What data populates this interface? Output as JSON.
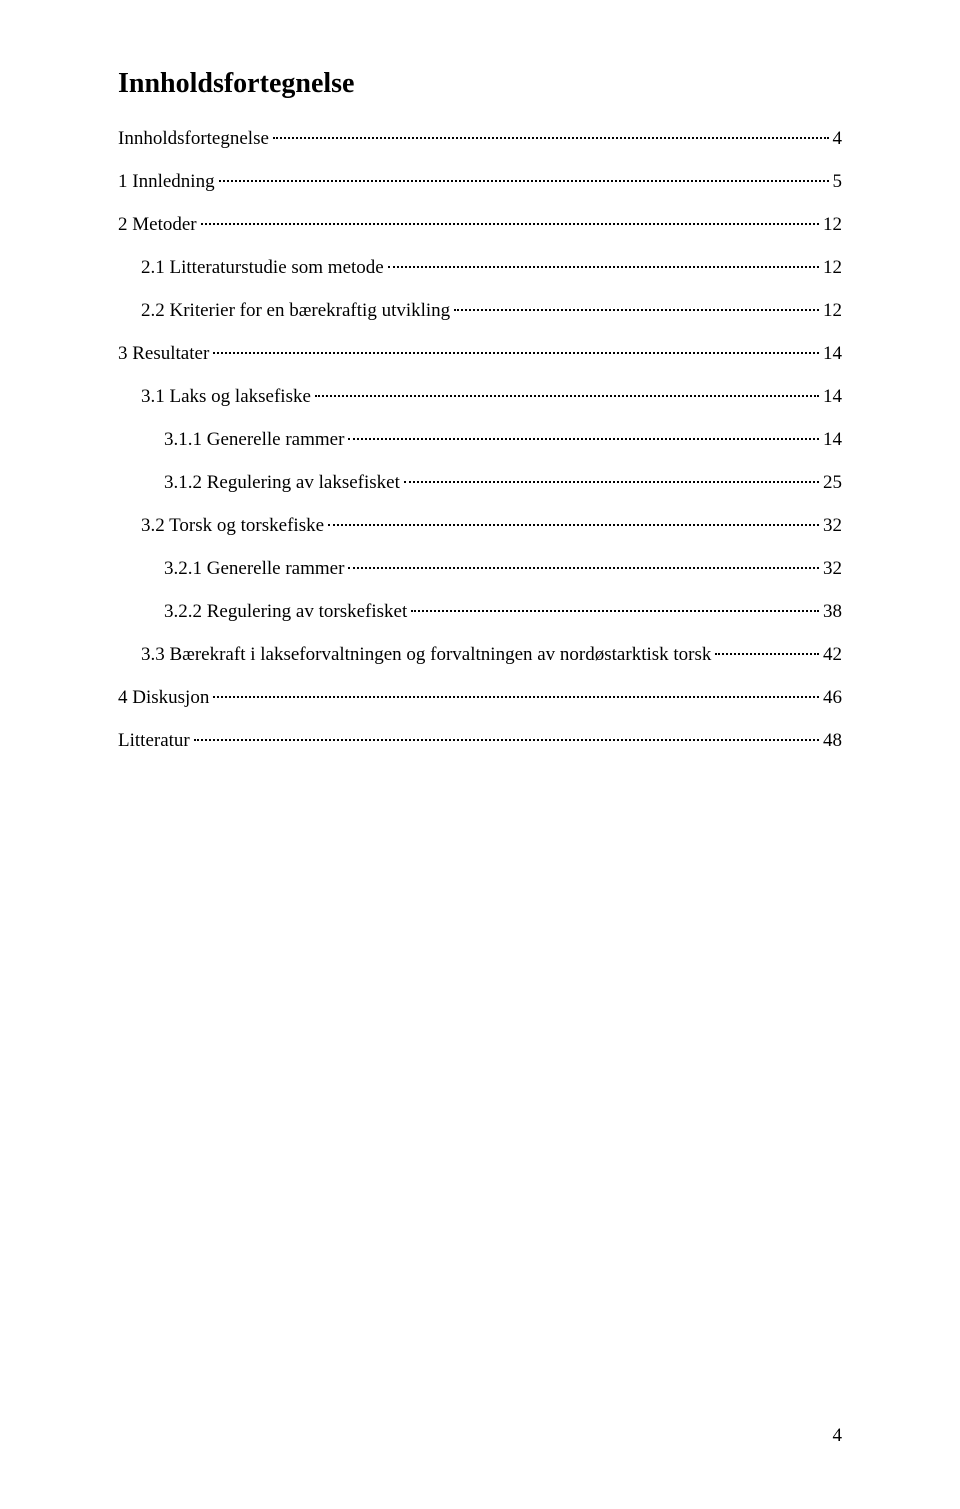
{
  "title": "Innholdsfortegnelse",
  "entries": [
    {
      "label": "Innholdsfortegnelse",
      "page": "4",
      "indent": 0
    },
    {
      "label": "1 Innledning",
      "page": "5",
      "indent": 0
    },
    {
      "label": "2 Metoder",
      "page": "12",
      "indent": 0
    },
    {
      "label": "2.1 Litteraturstudie som metode",
      "page": "12",
      "indent": 1
    },
    {
      "label": "2.2 Kriterier for en bærekraftig utvikling",
      "page": "12",
      "indent": 1
    },
    {
      "label": "3 Resultater",
      "page": "14",
      "indent": 0
    },
    {
      "label": "3.1 Laks og laksefiske",
      "page": "14",
      "indent": 1
    },
    {
      "label": "3.1.1 Generelle rammer",
      "page": "14",
      "indent": 2
    },
    {
      "label": "3.1.2 Regulering av laksefisket",
      "page": "25",
      "indent": 2
    },
    {
      "label": "3.2 Torsk og torskefiske",
      "page": "32",
      "indent": 1
    },
    {
      "label": "3.2.1 Generelle rammer",
      "page": "32",
      "indent": 2
    },
    {
      "label": "3.2.2 Regulering av torskefisket",
      "page": "38",
      "indent": 2
    },
    {
      "label": "3.3 Bærekraft i lakseforvaltningen og forvaltningen av nordøstarktisk torsk",
      "page": "42",
      "indent": 1
    },
    {
      "label": "4 Diskusjon",
      "page": "46",
      "indent": 0
    },
    {
      "label": "Litteratur",
      "page": "48",
      "indent": 0
    }
  ],
  "pageNumber": "4",
  "colors": {
    "background": "#ffffff",
    "text": "#000000"
  },
  "typography": {
    "family": "Times New Roman",
    "titleSize": 28,
    "bodySize": 19
  }
}
